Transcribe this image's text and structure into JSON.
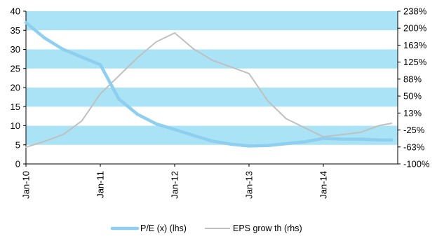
{
  "chart_data": {
    "type": "line",
    "title": "",
    "xlabel": "",
    "ylabel": "",
    "x_tick_labels": [
      "Jan-10",
      "Jan-11",
      "Jan-12",
      "Jan-13",
      "Jan-14"
    ],
    "y_left": {
      "lim": [
        0,
        40
      ],
      "ticks": [
        "0",
        "5",
        "10",
        "15",
        "20",
        "25",
        "30",
        "35",
        "40"
      ]
    },
    "y_right": {
      "lim": [
        -100,
        238
      ],
      "ticks": [
        "-100%",
        "-63%",
        "-25%",
        "13%",
        "50%",
        "88%",
        "125%",
        "163%",
        "200%",
        "238%"
      ]
    },
    "band_color": "#a9e3f5",
    "legend_position": "bottom-center",
    "x": [
      "2010-01",
      "2010-04",
      "2010-07",
      "2010-10",
      "2011-01",
      "2011-04",
      "2011-07",
      "2011-10",
      "2012-01",
      "2012-04",
      "2012-07",
      "2012-10",
      "2013-01",
      "2013-04",
      "2013-07",
      "2013-10",
      "2014-01",
      "2014-04",
      "2014-07",
      "2014-10",
      "2014-12"
    ],
    "series": [
      {
        "name": "P/E (x) (lhs)",
        "axis": "left",
        "color": "#8ecff0",
        "values": [
          37,
          33,
          30,
          28,
          26,
          17,
          13,
          10.5,
          9,
          7.5,
          6,
          5.2,
          4.7,
          4.8,
          5.3,
          5.8,
          6.7,
          6.5,
          6.5,
          6.3,
          6.3
        ]
      },
      {
        "name": "EPS grow th (rhs)",
        "axis": "right",
        "color": "#c0c0c0",
        "values": [
          -63,
          -50,
          -35,
          -5,
          55,
          95,
          135,
          170,
          190,
          155,
          130,
          115,
          100,
          40,
          0,
          -20,
          -40,
          -35,
          -30,
          -15,
          -10
        ]
      }
    ]
  }
}
